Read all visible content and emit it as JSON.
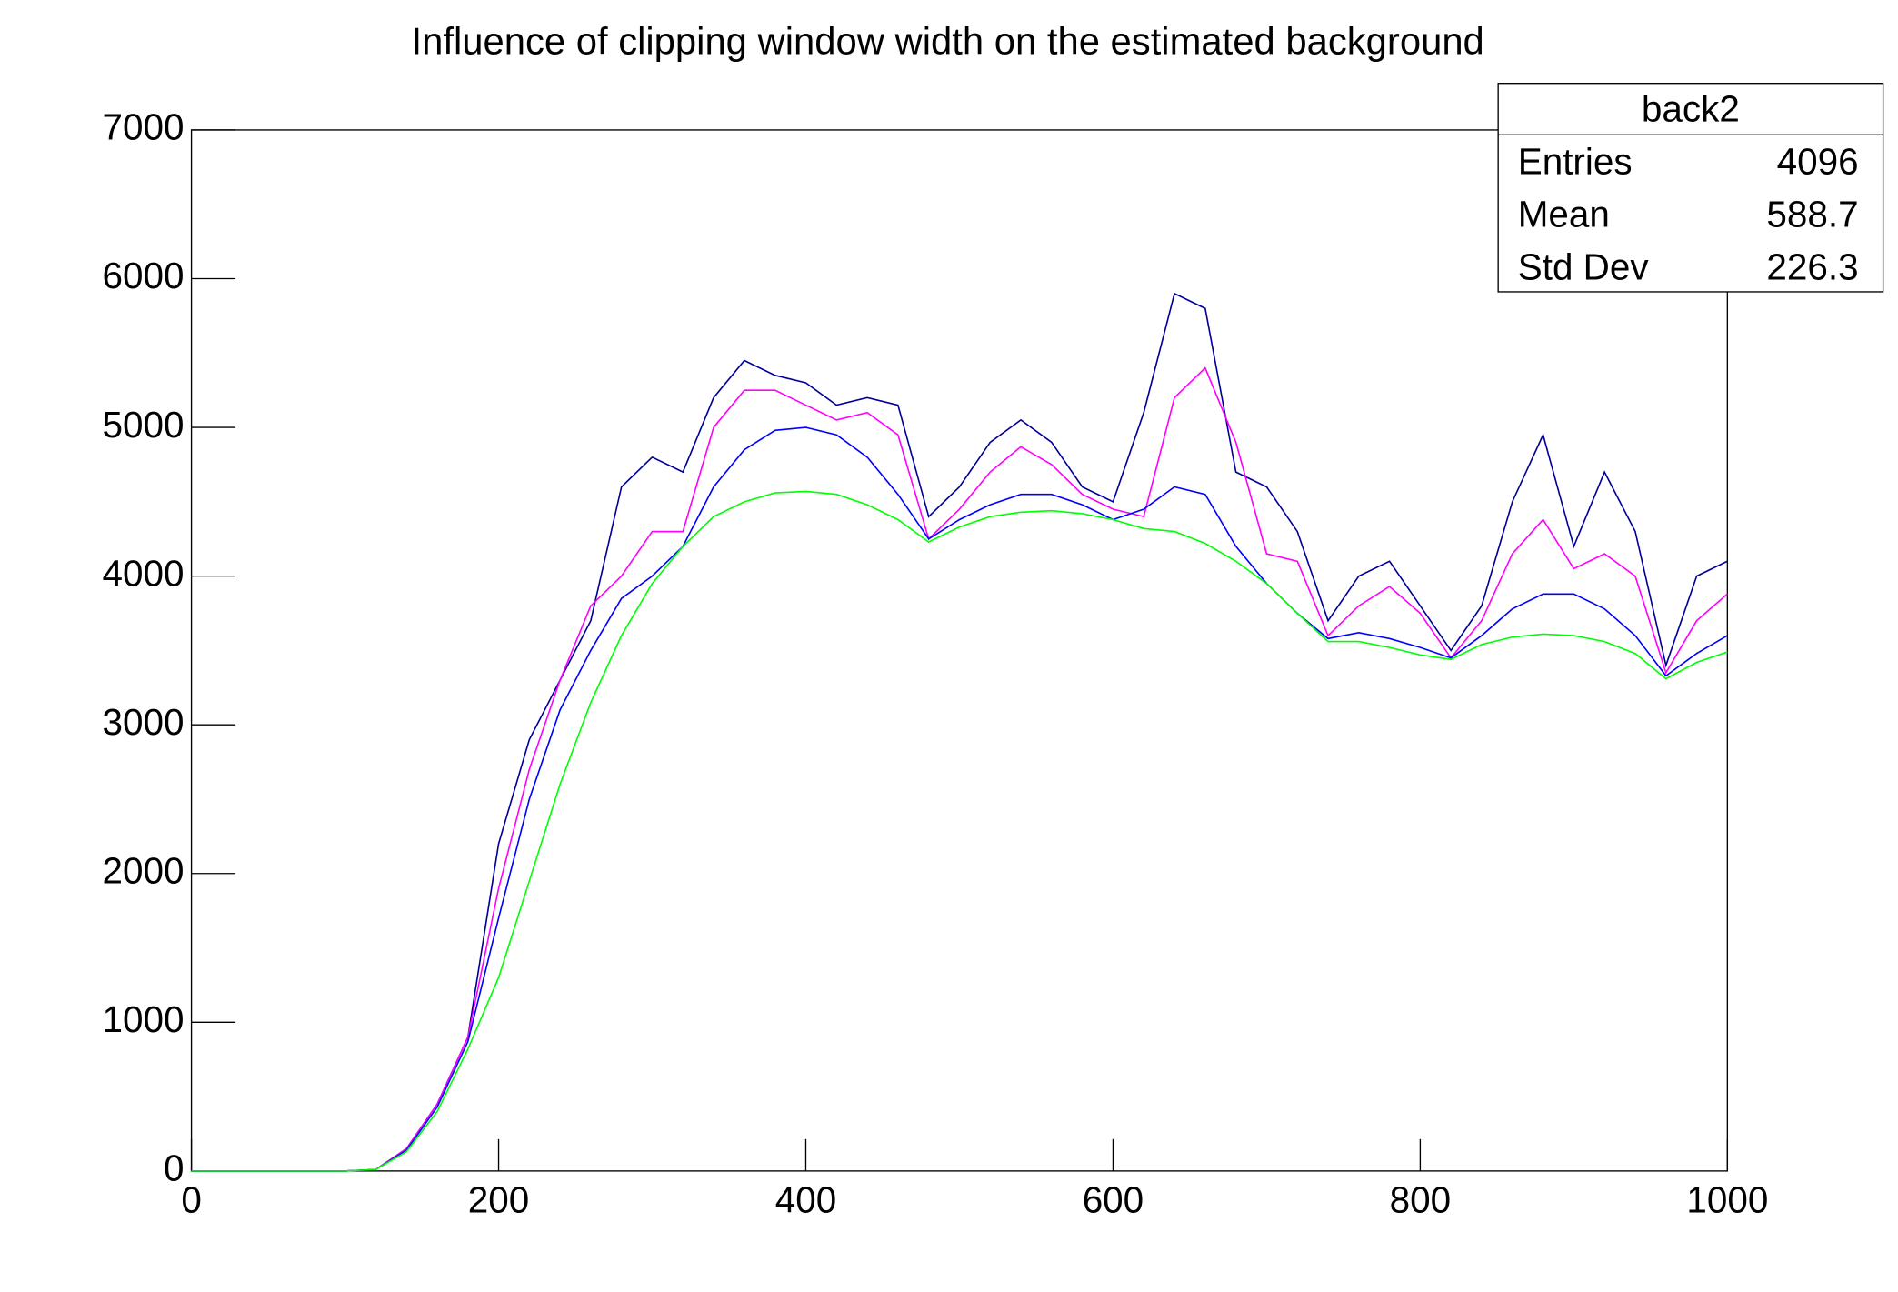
{
  "chart_data": {
    "type": "line",
    "title": "Influence of clipping window width on the estimated background",
    "x": [
      0,
      20,
      40,
      60,
      80,
      100,
      120,
      140,
      160,
      180,
      200,
      220,
      240,
      260,
      280,
      300,
      320,
      340,
      360,
      380,
      400,
      420,
      440,
      460,
      480,
      500,
      520,
      540,
      560,
      580,
      600,
      620,
      640,
      660,
      680,
      700,
      720,
      740,
      760,
      780,
      800,
      820,
      840,
      860,
      880,
      900,
      920,
      940,
      960,
      980,
      1000
    ],
    "series": [
      {
        "color": "#000099",
        "values": [
          0,
          0,
          0,
          0,
          0,
          0,
          10,
          150,
          450,
          900,
          2200,
          2900,
          3300,
          3700,
          4600,
          4800,
          4700,
          5200,
          5450,
          5350,
          5300,
          5150,
          5200,
          5150,
          4400,
          4600,
          4900,
          5050,
          4900,
          4600,
          4500,
          5100,
          5900,
          5800,
          4700,
          4600,
          4300,
          3700,
          4000,
          4100,
          3800,
          3500,
          3800,
          4500,
          4950,
          4200,
          4700,
          4300,
          3400,
          4000,
          4100
        ]
      },
      {
        "color": "#ff00ff",
        "values": [
          0,
          0,
          0,
          0,
          0,
          0,
          10,
          150,
          450,
          900,
          1900,
          2700,
          3300,
          3800,
          4000,
          4300,
          4300,
          5000,
          5250,
          5250,
          5150,
          5050,
          5100,
          4950,
          4250,
          4450,
          4700,
          4870,
          4750,
          4550,
          4450,
          4400,
          5200,
          5400,
          4900,
          4150,
          4100,
          3600,
          3800,
          3930,
          3750,
          3450,
          3700,
          4150,
          4380,
          4050,
          4150,
          4000,
          3350,
          3700,
          3880
        ]
      },
      {
        "color": "#0000ff",
        "values": [
          0,
          0,
          0,
          0,
          0,
          0,
          10,
          140,
          430,
          870,
          1700,
          2500,
          3100,
          3500,
          3850,
          4000,
          4200,
          4600,
          4850,
          4980,
          5000,
          4950,
          4800,
          4550,
          4250,
          4380,
          4480,
          4550,
          4550,
          4480,
          4380,
          4450,
          4600,
          4550,
          4200,
          3950,
          3750,
          3580,
          3620,
          3580,
          3520,
          3450,
          3600,
          3780,
          3880,
          3880,
          3780,
          3600,
          3330,
          3480,
          3600
        ]
      },
      {
        "color": "#00ff00",
        "values": [
          0,
          0,
          0,
          0,
          0,
          0,
          10,
          130,
          400,
          820,
          1300,
          1950,
          2600,
          3150,
          3600,
          3950,
          4200,
          4400,
          4500,
          4560,
          4570,
          4550,
          4480,
          4380,
          4230,
          4330,
          4400,
          4430,
          4440,
          4420,
          4380,
          4320,
          4300,
          4220,
          4100,
          3950,
          3750,
          3560,
          3560,
          3520,
          3470,
          3440,
          3540,
          3590,
          3610,
          3600,
          3560,
          3480,
          3310,
          3420,
          3490
        ]
      }
    ],
    "xlim": [
      0,
      1000
    ],
    "xticks": [
      0,
      200,
      400,
      600,
      800,
      1000
    ],
    "ylim": [
      0,
      7000
    ],
    "yticks": [
      0,
      1000,
      2000,
      3000,
      4000,
      5000,
      6000,
      7000
    ],
    "grid": false,
    "stats_box": {
      "title": "back2",
      "rows": [
        [
          "Entries",
          4096
        ],
        [
          "Mean",
          588.7
        ],
        [
          "Std Dev",
          226.3
        ]
      ]
    }
  }
}
